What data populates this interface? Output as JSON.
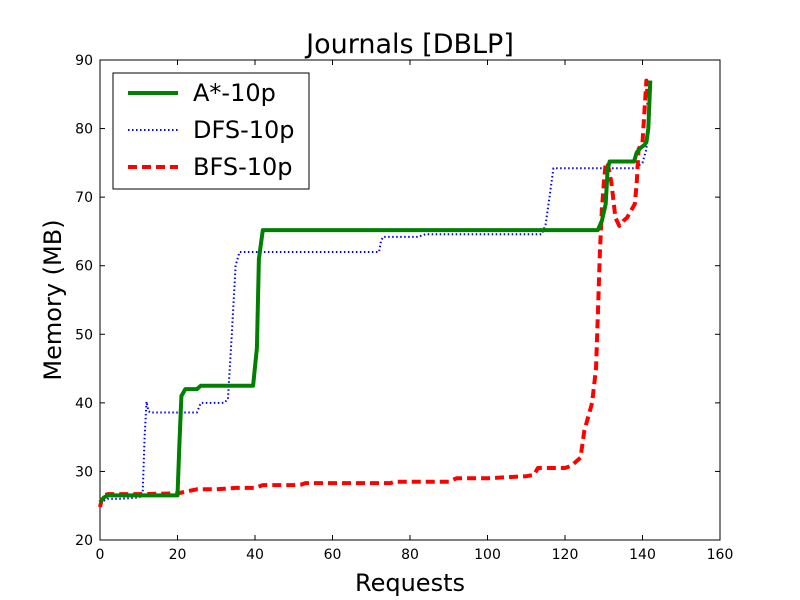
{
  "chart_data": {
    "type": "line",
    "title": "Journals [DBLP]",
    "xlabel": "Requests",
    "ylabel": "Memory (MB)",
    "xlim": [
      0,
      160
    ],
    "ylim": [
      20,
      90
    ],
    "xticks": [
      0,
      20,
      40,
      60,
      80,
      100,
      120,
      140,
      160
    ],
    "yticks": [
      20,
      30,
      40,
      50,
      60,
      70,
      80,
      90
    ],
    "grid": false,
    "legend_position": "top-left",
    "series": [
      {
        "name": "A*-10p",
        "color": "#008000",
        "style": "solid",
        "x": [
          0,
          1,
          2,
          3,
          5,
          10,
          15,
          20,
          20.5,
          21,
          22,
          24,
          25,
          26,
          28,
          30,
          35,
          39.5,
          40.5,
          41,
          42,
          50,
          60,
          80,
          100,
          120,
          128.5,
          129.5,
          130.5,
          131,
          131.5,
          132,
          134,
          136,
          137.8,
          138.5,
          139.5,
          140.5,
          141,
          141.5,
          142
        ],
        "y": [
          25.5,
          26.2,
          26.5,
          26.5,
          26.5,
          26.5,
          26.5,
          26.5,
          34,
          41,
          42,
          42,
          42,
          42.5,
          42.5,
          42.5,
          42.5,
          42.5,
          48,
          61,
          65.2,
          65.2,
          65.2,
          65.2,
          65.2,
          65.2,
          65.2,
          66.5,
          69,
          74,
          75.2,
          75.2,
          75.2,
          75.2,
          75.2,
          76.5,
          77.2,
          77.6,
          78,
          80,
          87
        ]
      },
      {
        "name": "DFS-10p",
        "color": "#0000ff",
        "style": "dotted",
        "x": [
          0,
          2,
          5,
          10,
          11,
          11.5,
          12,
          12.5,
          13,
          20,
          25,
          26,
          30,
          32,
          33,
          34,
          35,
          36,
          40,
          50,
          60,
          70,
          72,
          72.5,
          73,
          80,
          82,
          84,
          90,
          100,
          110,
          114,
          115,
          116,
          117,
          118,
          125,
          130,
          135,
          138,
          139,
          140,
          141,
          141.5,
          142
        ],
        "y": [
          25.5,
          26,
          26,
          26.2,
          26.5,
          35,
          40.2,
          38.8,
          38.6,
          38.6,
          38.6,
          40,
          40,
          40,
          40.5,
          50,
          60,
          62,
          62,
          62,
          62,
          62,
          62,
          63.5,
          64.2,
          64.2,
          64.2,
          64.6,
          64.6,
          64.6,
          64.6,
          64.6,
          66,
          70,
          74.2,
          74.2,
          74.2,
          74.2,
          74.2,
          74.2,
          74.6,
          75,
          77,
          82,
          87
        ]
      },
      {
        "name": "BFS-10p",
        "color": "#ff0000",
        "style": "dashed",
        "x": [
          0,
          0.5,
          1,
          2,
          5,
          10,
          20,
          25,
          30,
          35,
          40,
          41,
          42,
          50,
          52,
          53,
          60,
          70,
          75,
          76,
          80,
          90,
          92,
          100,
          110,
          112,
          113,
          115,
          120,
          121,
          122,
          123,
          124,
          125,
          126,
          127,
          128,
          128.5,
          129,
          129.5,
          130,
          130.5,
          131,
          132,
          133,
          134,
          135,
          136,
          137,
          138,
          138.5,
          139,
          140,
          141,
          141.5
        ],
        "y": [
          24.8,
          26,
          26.5,
          26.7,
          26.7,
          26.7,
          26.8,
          27.4,
          27.4,
          27.6,
          27.6,
          27.8,
          28,
          28,
          28.1,
          28.3,
          28.3,
          28.3,
          28.3,
          28.5,
          28.5,
          28.5,
          29,
          29,
          29.3,
          29.5,
          30.5,
          30.5,
          30.5,
          30.7,
          31,
          31.5,
          32,
          36,
          38,
          40,
          45,
          53,
          62,
          68,
          72,
          75,
          75,
          72,
          67,
          65.8,
          66.5,
          67,
          68,
          69,
          72,
          77,
          78,
          87,
          83.5
        ]
      }
    ]
  }
}
